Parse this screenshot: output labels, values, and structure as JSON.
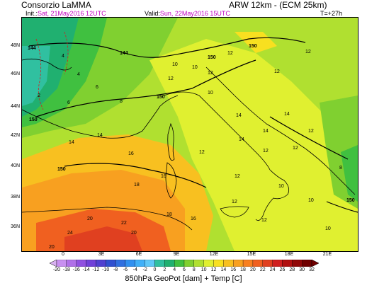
{
  "header": {
    "title": "Consorzio LaMMA",
    "model": "ARW 12km - (ECM 25km)",
    "init_label": "Init.:",
    "init_value": "Sat, 21May2016 12UTC",
    "valid_label": "Valid:",
    "valid_value": "Sun, 22May2016 15UTC",
    "lead": "T=+27h"
  },
  "map": {
    "lat_labels": [
      "48N",
      "46N",
      "44N",
      "42N",
      "40N",
      "38N",
      "36N"
    ],
    "lon_labels": [
      "0",
      "3E",
      "6E",
      "9E",
      "12E",
      "15E",
      "18E",
      "21E"
    ],
    "geopotential_labels": [
      "144",
      "144",
      "150",
      "150",
      "150",
      "150",
      "150",
      "150"
    ],
    "temperature_labels": [
      "4",
      "4",
      "6",
      "8",
      "6",
      "2",
      "12",
      "10",
      "10",
      "12",
      "12",
      "12",
      "12",
      "10",
      "14",
      "14",
      "14",
      "14",
      "14",
      "12",
      "12",
      "14",
      "12",
      "16",
      "16",
      "18",
      "18",
      "20",
      "22",
      "24",
      "20",
      "16",
      "12",
      "12",
      "10",
      "10",
      "8",
      "12",
      "12",
      "10",
      "20"
    ]
  },
  "legend": {
    "scale_values": [
      "-20",
      "-18",
      "-16",
      "-14",
      "-12",
      "-10",
      "-8",
      "-6",
      "-4",
      "-2",
      "0",
      "2",
      "4",
      "6",
      "8",
      "10",
      "12",
      "14",
      "16",
      "18",
      "20",
      "22",
      "24",
      "26",
      "28",
      "30",
      "32"
    ],
    "scale_colors": [
      "#d8b0f0",
      "#c890f0",
      "#b070e8",
      "#9050e0",
      "#7040d8",
      "#5040d0",
      "#3050d0",
      "#3070e0",
      "#3090f0",
      "#40b0f8",
      "#60c8f8",
      "#30c0a0",
      "#20b070",
      "#40c040",
      "#80d030",
      "#b0e030",
      "#e0f030",
      "#f8e020",
      "#f8c020",
      "#f8a020",
      "#f88020",
      "#f06020",
      "#e04020",
      "#d02020",
      "#b01010",
      "#900808",
      "#700000"
    ],
    "caption": "850hPa GeoPot [dam] + Temp [C]"
  },
  "colors": {
    "green_dark": "#20b070",
    "green_mid": "#40c040",
    "green_light": "#80d030",
    "yellow_green": "#b0e030",
    "yellow": "#e0f030",
    "orange_light": "#f8c020",
    "orange": "#f8a020",
    "red_orange": "#f06020",
    "red": "#e04020"
  }
}
